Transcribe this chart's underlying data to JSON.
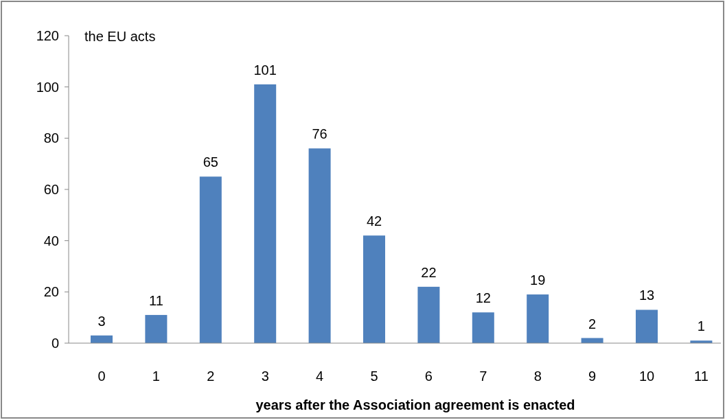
{
  "chart_data": {
    "type": "bar",
    "ylabel": "the EU acts",
    "xlabel": "years after the Association agreement is enacted",
    "categories": [
      "0",
      "1",
      "2",
      "3",
      "4",
      "5",
      "6",
      "7",
      "8",
      "9",
      "10",
      "11"
    ],
    "values": [
      3,
      11,
      65,
      101,
      76,
      42,
      22,
      12,
      19,
      2,
      13,
      1
    ],
    "color": "#4f81bd",
    "ylim": [
      0,
      120
    ],
    "yticks": [
      0,
      20,
      40,
      60,
      80,
      100,
      120
    ],
    "data_labels": true,
    "grid": false
  }
}
